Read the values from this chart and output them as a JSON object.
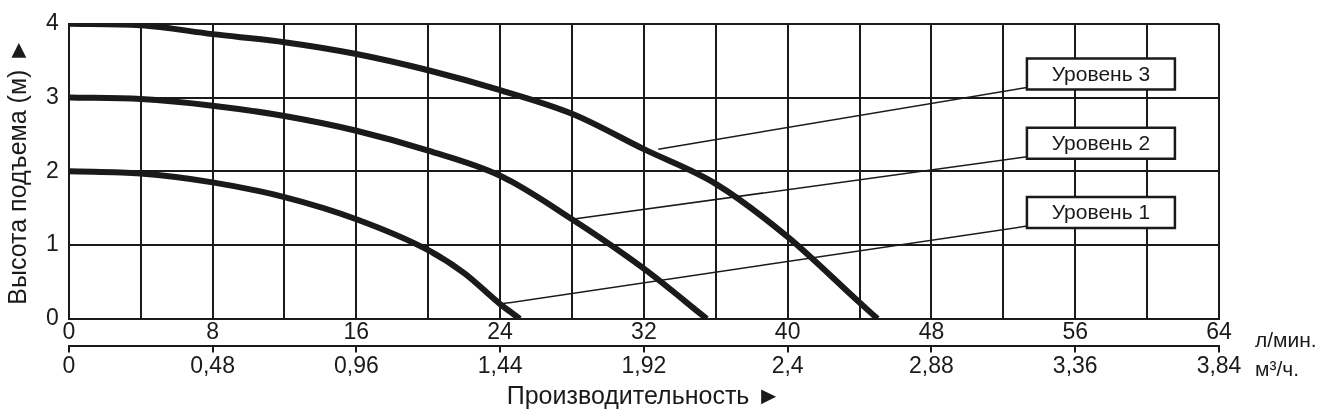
{
  "chart_data": {
    "type": "line",
    "xlabel": "Производительность ►",
    "ylabel": "Высота подъема (м) ►",
    "xlim": [
      0,
      64
    ],
    "xticks": [
      0,
      {
        "value": 4,
        "label": null
      },
      8,
      {
        "value": 12,
        "label": null
      },
      16,
      {
        "value": 20,
        "label": null
      },
      24,
      {
        "value": 28,
        "label": null
      },
      32,
      {
        "value": 36,
        "label": null
      },
      40,
      {
        "value": 44,
        "label": null
      },
      48,
      {
        "value": 52,
        "label": null
      },
      56,
      {
        "value": 60,
        "label": null
      },
      64
    ],
    "x2lim": [
      0,
      3.84
    ],
    "x2ticks": [
      0,
      {
        "value": 0.48,
        "label": "0,48"
      },
      {
        "value": 0.96,
        "label": "0,96"
      },
      {
        "value": 1.44,
        "label": "1,44"
      },
      {
        "value": 1.92,
        "label": "1,92"
      },
      {
        "value": 2.4,
        "label": "2,4"
      },
      {
        "value": 2.88,
        "label": "2,88"
      },
      {
        "value": 3.36,
        "label": "3,36"
      },
      {
        "value": 3.84,
        "label": "3,84"
      }
    ],
    "ylim": [
      0,
      4
    ],
    "yticks": [
      0,
      1,
      2,
      3,
      4
    ],
    "grid": true,
    "legend": false,
    "marker": "none",
    "line_style": "solid",
    "series": [
      {
        "color": "#1a1a1a",
        "x": [
          0,
          4,
          8,
          12,
          16,
          20,
          22,
          24,
          25.1
        ],
        "values": [
          2,
          1.97,
          1.85,
          1.65,
          1.35,
          0.93,
          0.62,
          0.2,
          0
        ]
      },
      {
        "color": "#1a1a1a",
        "x": [
          0,
          4,
          8,
          12,
          16,
          20,
          24,
          28,
          32,
          35.5
        ],
        "values": [
          3,
          2.98,
          2.89,
          2.75,
          2.55,
          2.28,
          1.94,
          1.35,
          0.68,
          0
        ]
      },
      {
        "color": "#1a1a1a",
        "x": [
          0,
          4,
          8,
          12,
          16,
          20,
          24,
          28,
          32,
          36,
          40,
          44,
          45
        ],
        "values": [
          4,
          3.98,
          3.86,
          3.75,
          3.59,
          3.37,
          3.1,
          2.78,
          2.3,
          1.83,
          1.11,
          0.22,
          0
        ]
      }
    ],
    "annotations": [
      "л/мин.",
      "м³/ч.",
      {
        "text": "Уровень 3",
        "x": 32.8,
        "y": 2.3
      },
      {
        "text": "Уровень 2",
        "x": 28,
        "y": 1.35
      },
      {
        "text": "Уровень 1",
        "x": 24,
        "y": 0.2
      }
    ]
  }
}
